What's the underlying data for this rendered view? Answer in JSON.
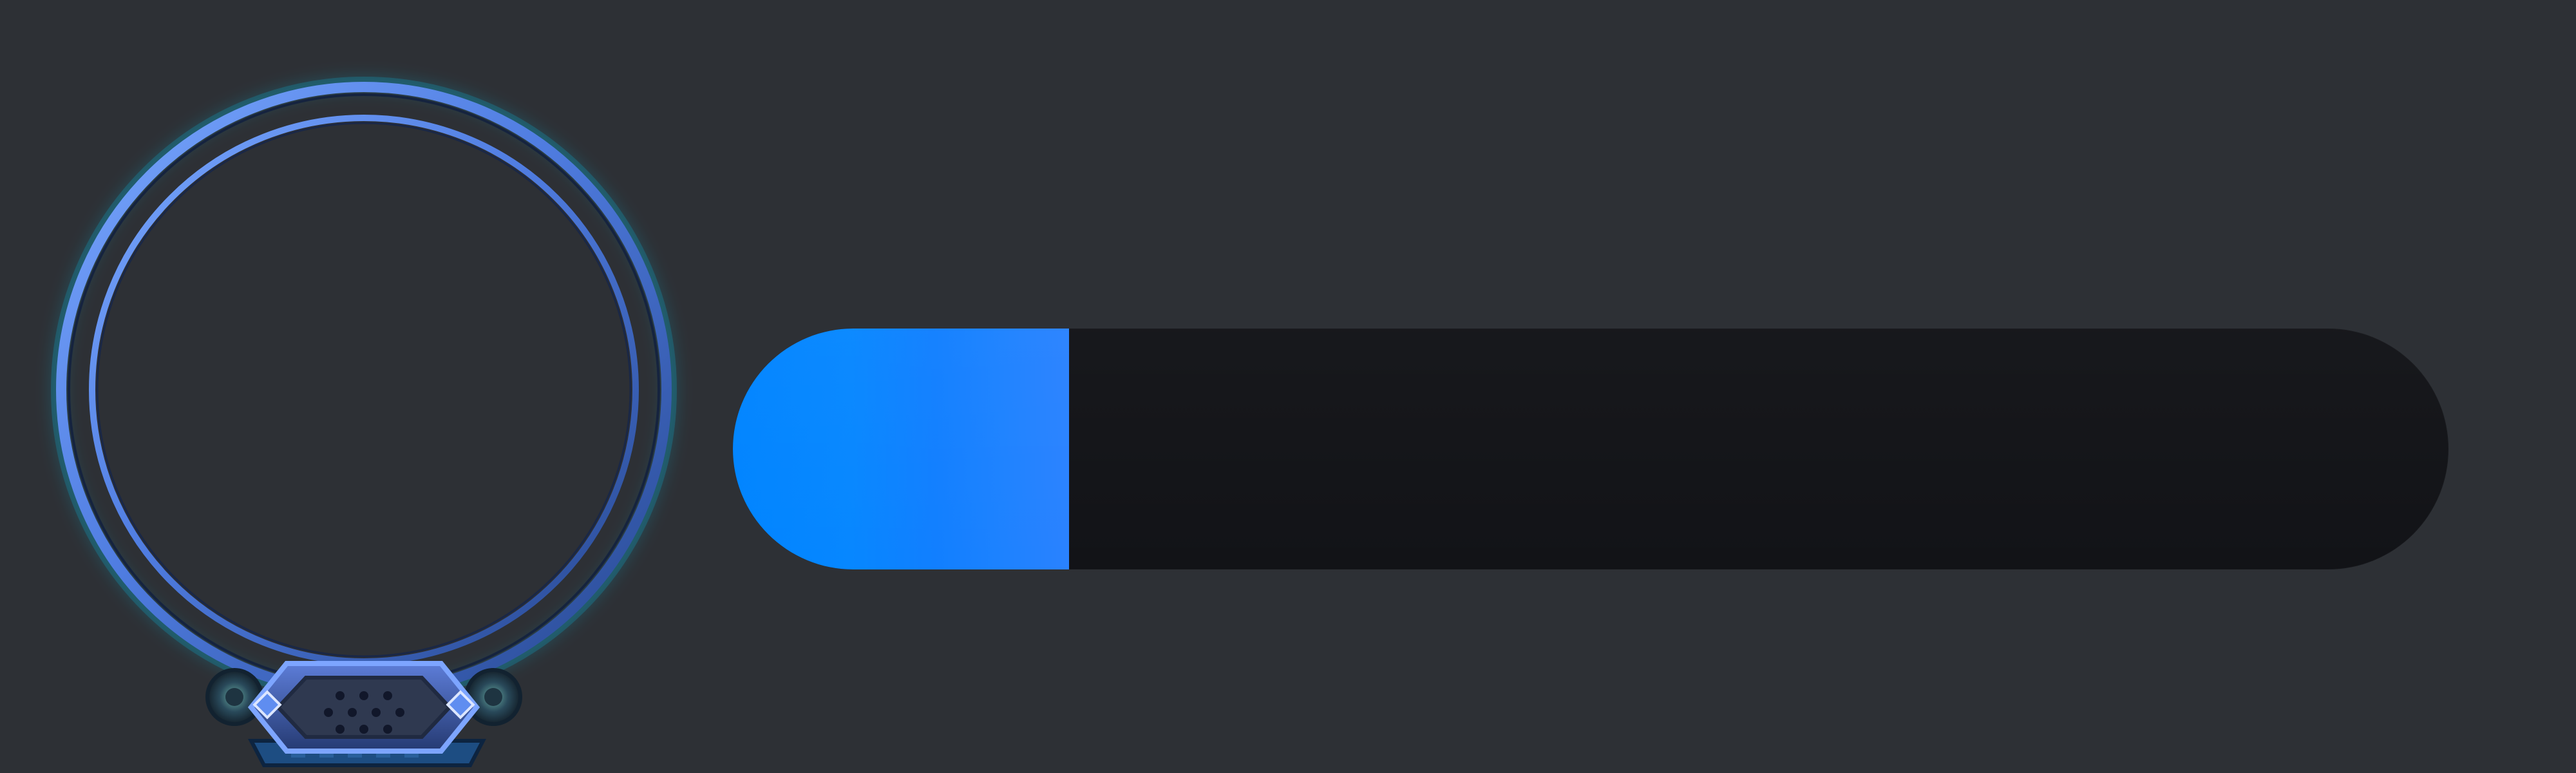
{
  "colors": {
    "background": "#2d3035",
    "bar_track": "#121317",
    "bar_fill_start": "#0084ff",
    "bar_fill_end": "#2a82ff",
    "frame_blue": "#4c7fe0",
    "frame_glow": "#00d4ff"
  },
  "avatar": {
    "icon": "ornate-ring-avatar-frame",
    "gem_icon": "hexagon-gem-badge"
  },
  "progress": {
    "fraction": 0.196
  }
}
